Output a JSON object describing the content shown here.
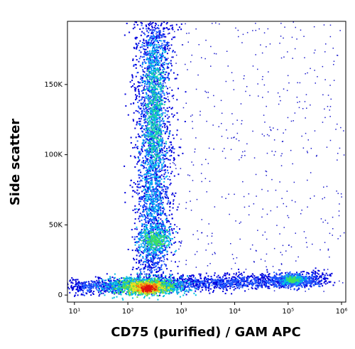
{
  "chart_data": {
    "type": "density-scatter",
    "x_label": "CD75 (purified) / GAM APC",
    "y_label": "Side scatter",
    "x_log": true,
    "xlim": [
      7.4,
      1200000
    ],
    "xticks": [
      {
        "value": 10,
        "label": "10¹"
      },
      {
        "value": 100,
        "label": "10²"
      },
      {
        "value": 1000,
        "label": "10³"
      },
      {
        "value": 10000,
        "label": "10⁴"
      },
      {
        "value": 100000,
        "label": "10⁵"
      },
      {
        "value": 1000000,
        "label": "10⁶"
      }
    ],
    "ylim": [
      -5000,
      195000
    ],
    "yticks": [
      0,
      {
        "value": 50000,
        "label": "50K"
      },
      {
        "value": 100000,
        "label": "100K"
      },
      {
        "value": 150000,
        "label": "150K"
      }
    ]
  }
}
